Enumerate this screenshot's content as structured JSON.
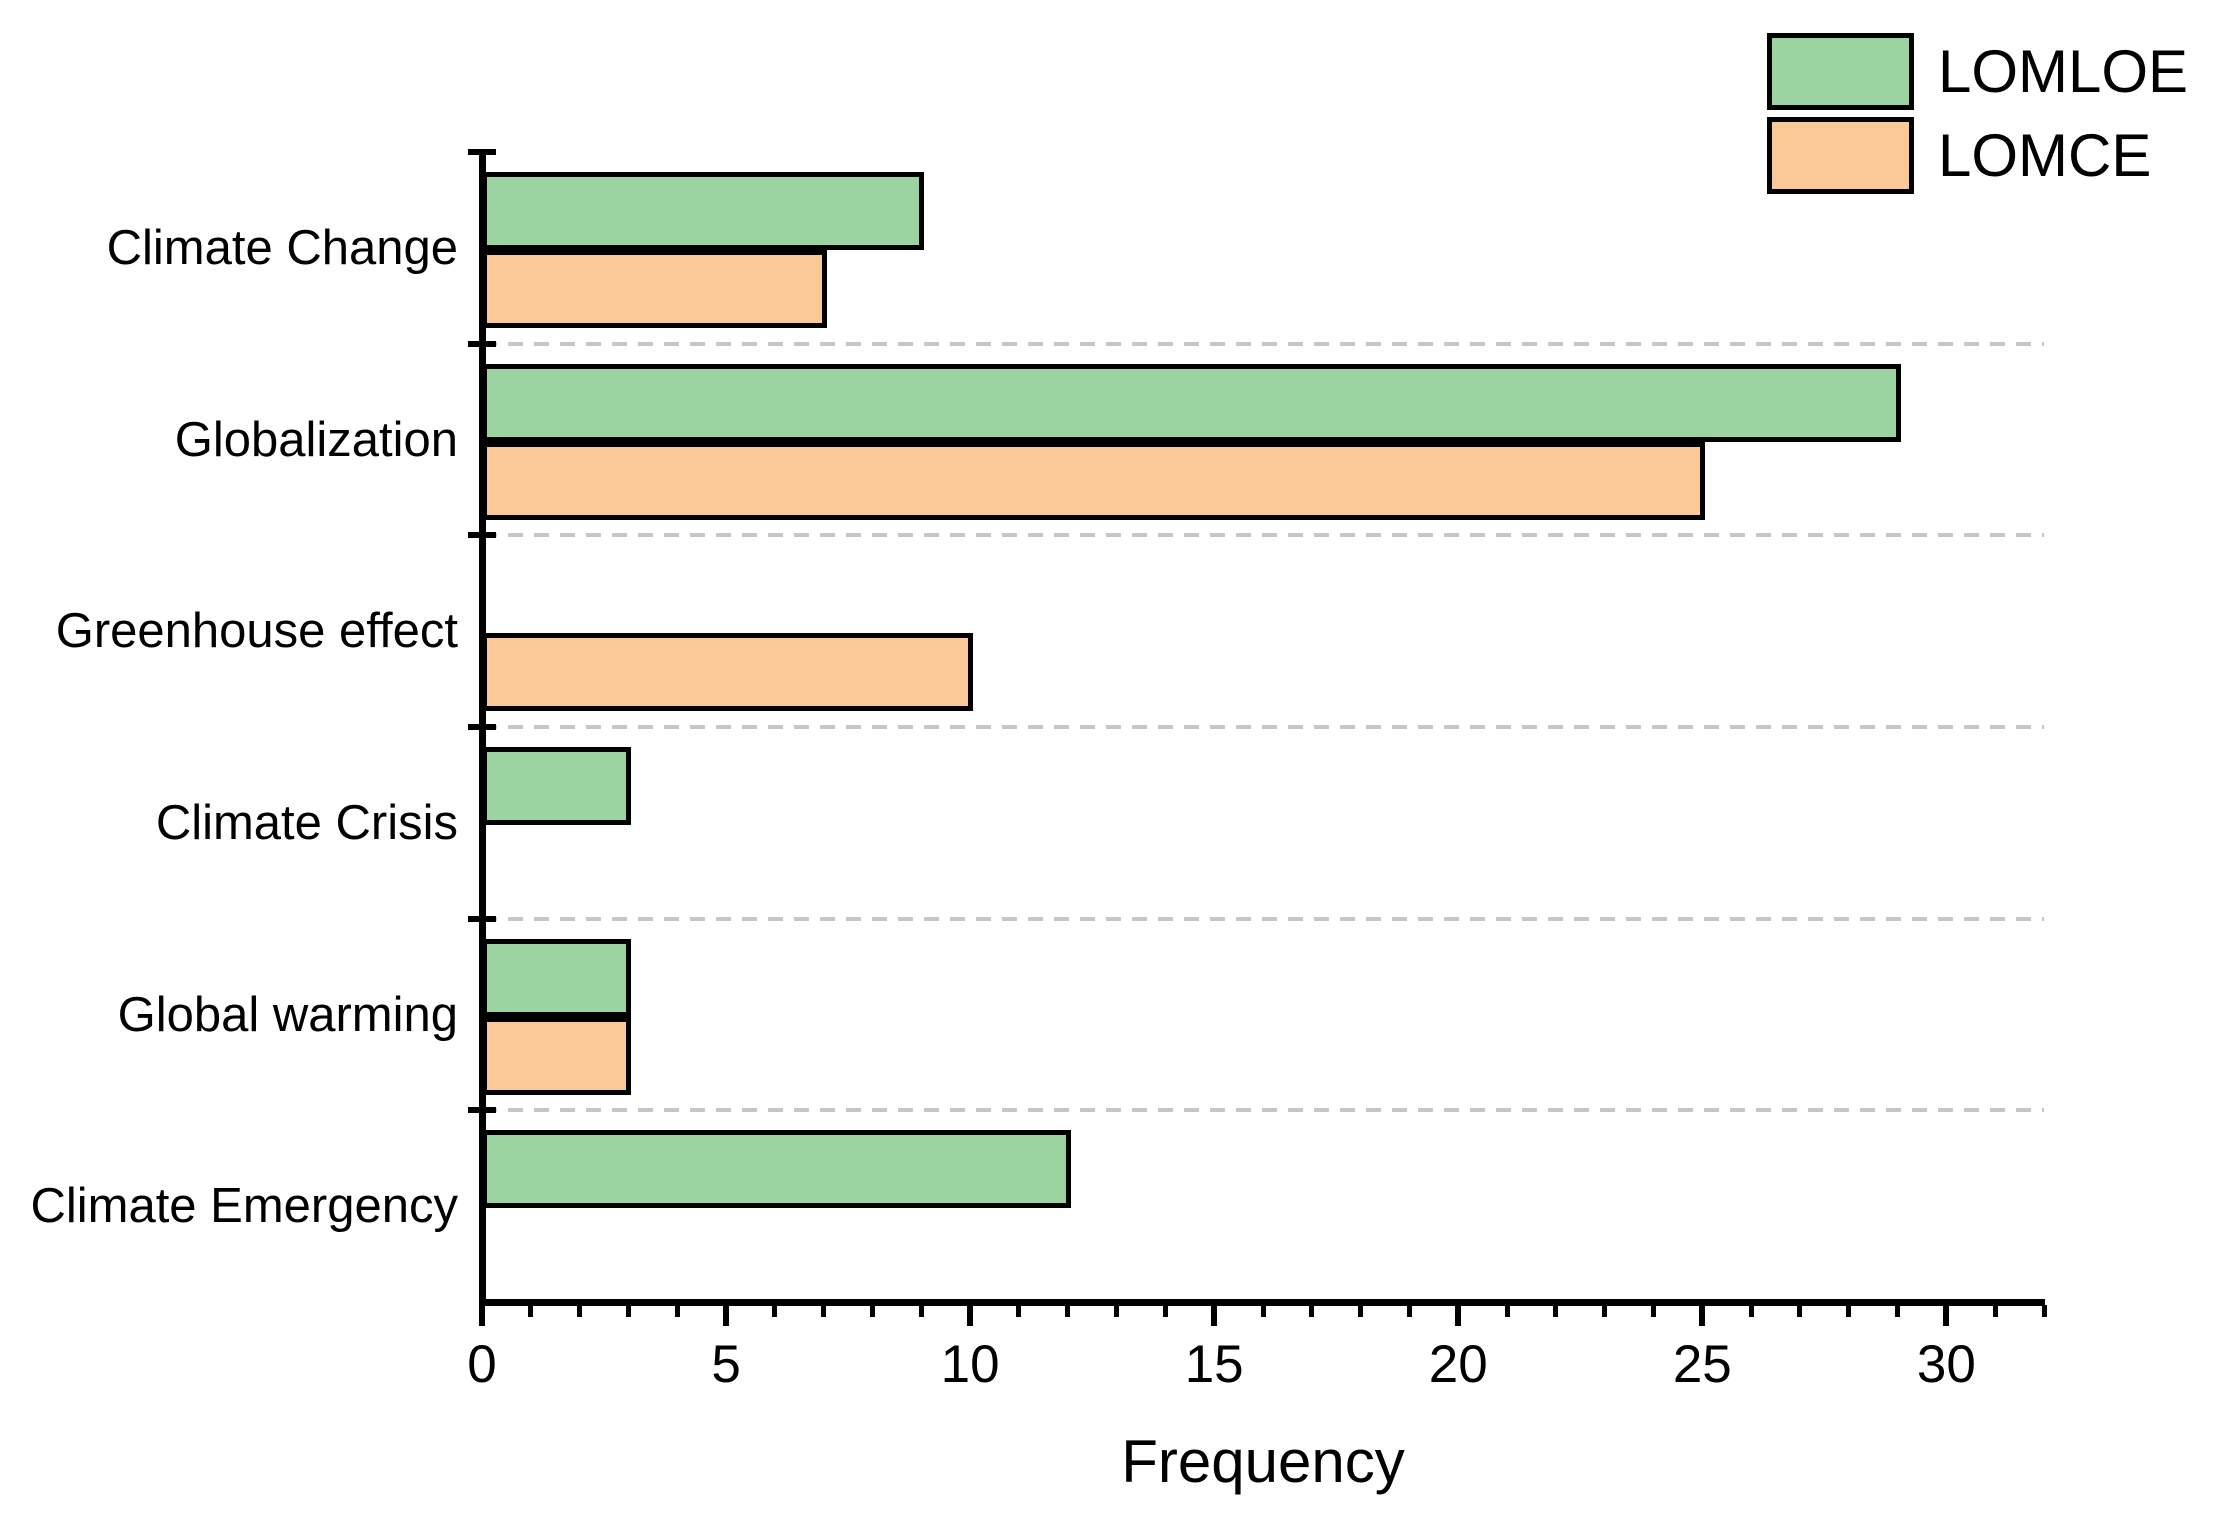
{
  "chart_data": {
    "type": "bar",
    "orientation": "horizontal",
    "title": "",
    "xlabel": "Frequency",
    "ylabel": "",
    "categories": [
      "Climate Change",
      "Globalization",
      "Greenhouse effect",
      "Climate Crisis",
      "Global warming",
      "Climate Emergency"
    ],
    "series": [
      {
        "name": "LOMLOE",
        "color": "#9bd4a0",
        "values": [
          9,
          29,
          0,
          3,
          3,
          12
        ]
      },
      {
        "name": "LOMCE",
        "color": "#fbc998",
        "values": [
          7,
          25,
          10,
          0,
          3,
          0
        ]
      }
    ],
    "xlim": [
      0,
      32
    ],
    "x_major_ticks": [
      0,
      5,
      10,
      15,
      20,
      25,
      30
    ],
    "x_minor_tick_step": 1,
    "grid": "horizontal dashed separators between category groups",
    "legend_position": "top-right",
    "bar_border_color": "#000000",
    "gridline_color": "#c6c6c6",
    "axis_color": "#000000"
  },
  "legend": {
    "items": [
      {
        "label": "LOMLOE",
        "color": "#9bd4a0"
      },
      {
        "label": "LOMCE",
        "color": "#fbc998"
      }
    ]
  }
}
